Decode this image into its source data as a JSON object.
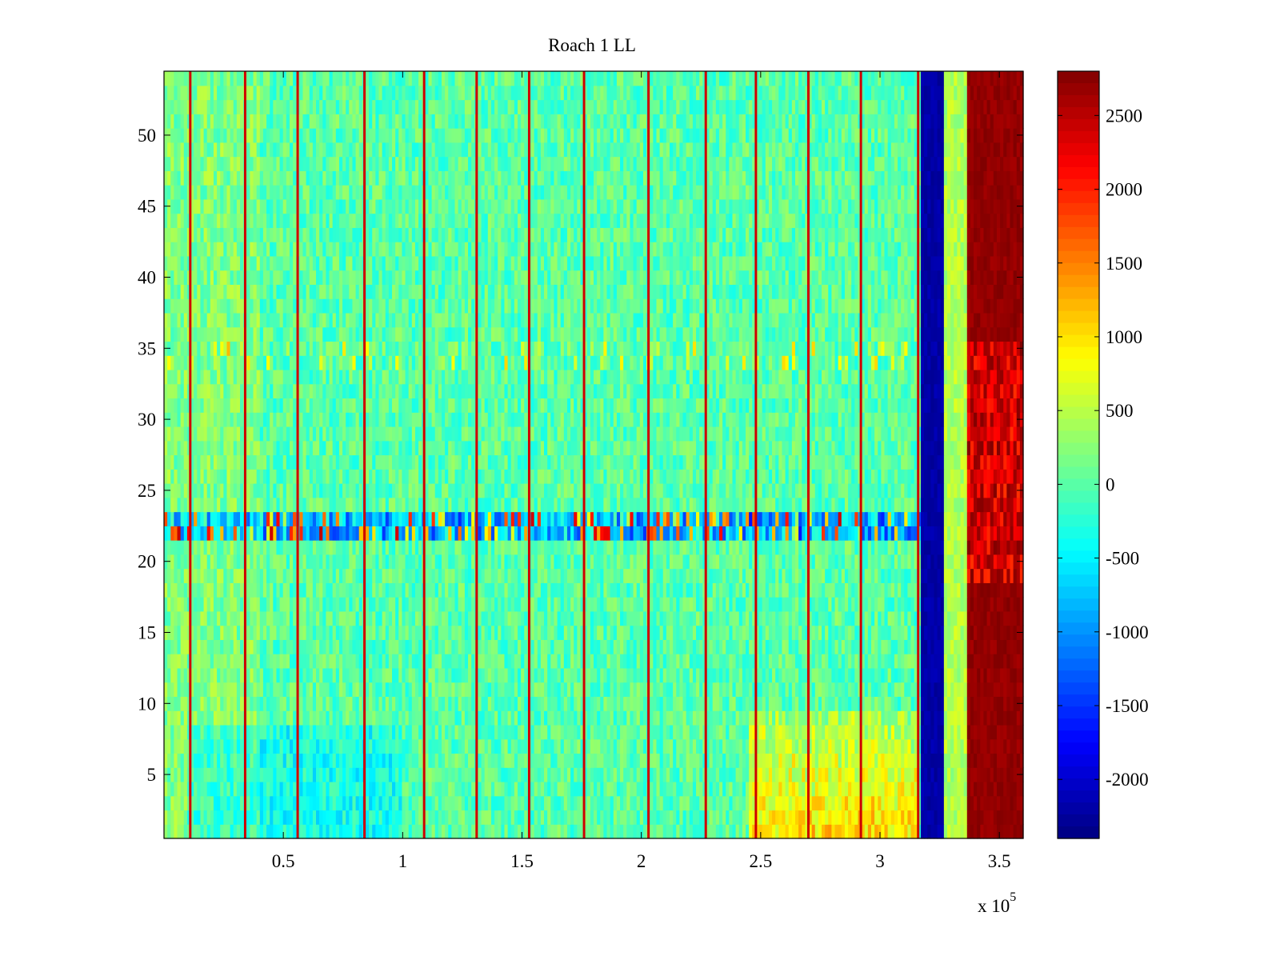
{
  "figure": {
    "title": "Roach 1 LL"
  },
  "chart_data": {
    "type": "heatmap",
    "title": "Roach 1 LL",
    "xlabel": "",
    "ylabel": "",
    "x_exponent_label": "x 10",
    "x_exponent_power": "5",
    "xlim": [
      0.0,
      3.6
    ],
    "ylim": [
      0.5,
      54.5
    ],
    "x_ticks": [
      0.5,
      1,
      1.5,
      2,
      2.5,
      3,
      3.5
    ],
    "x_tick_labels": [
      "0.5",
      "1",
      "1.5",
      "2",
      "2.5",
      "3",
      "3.5"
    ],
    "y_ticks": [
      5,
      10,
      15,
      20,
      25,
      30,
      35,
      40,
      45,
      50
    ],
    "y_tick_labels": [
      "5",
      "10",
      "15",
      "20",
      "25",
      "30",
      "35",
      "40",
      "45",
      "50"
    ],
    "rows": 54,
    "colormap": "jet",
    "clim": [
      -2400,
      2800
    ],
    "colorbar_ticks": [
      2500,
      2000,
      1500,
      1000,
      500,
      0,
      -500,
      -1000,
      -1500,
      -2000
    ],
    "colorbar_tick_labels": [
      "2500",
      "2000",
      "1500",
      "1000",
      "500",
      "0",
      "-500",
      "-1000",
      "-1500",
      "-2000"
    ],
    "baseline_value": 0,
    "spike_columns_x": [
      0.11,
      0.34,
      0.56,
      0.84,
      1.09,
      1.31,
      1.53,
      1.76,
      2.03,
      2.27,
      2.48,
      2.7,
      2.92,
      3.16
    ],
    "spike_value": 2400,
    "low_band": {
      "x_range": [
        3.17,
        3.27
      ],
      "value": -2300
    },
    "high_band": {
      "x_range": [
        3.37,
        3.6
      ],
      "value": 2800
    },
    "noisy_row_band": {
      "y_range": [
        21.5,
        23.5
      ]
    },
    "warm_region_low_rows": {
      "x_range": [
        2.45,
        3.16
      ],
      "y_range": [
        0.5,
        9
      ],
      "value": 900
    }
  }
}
